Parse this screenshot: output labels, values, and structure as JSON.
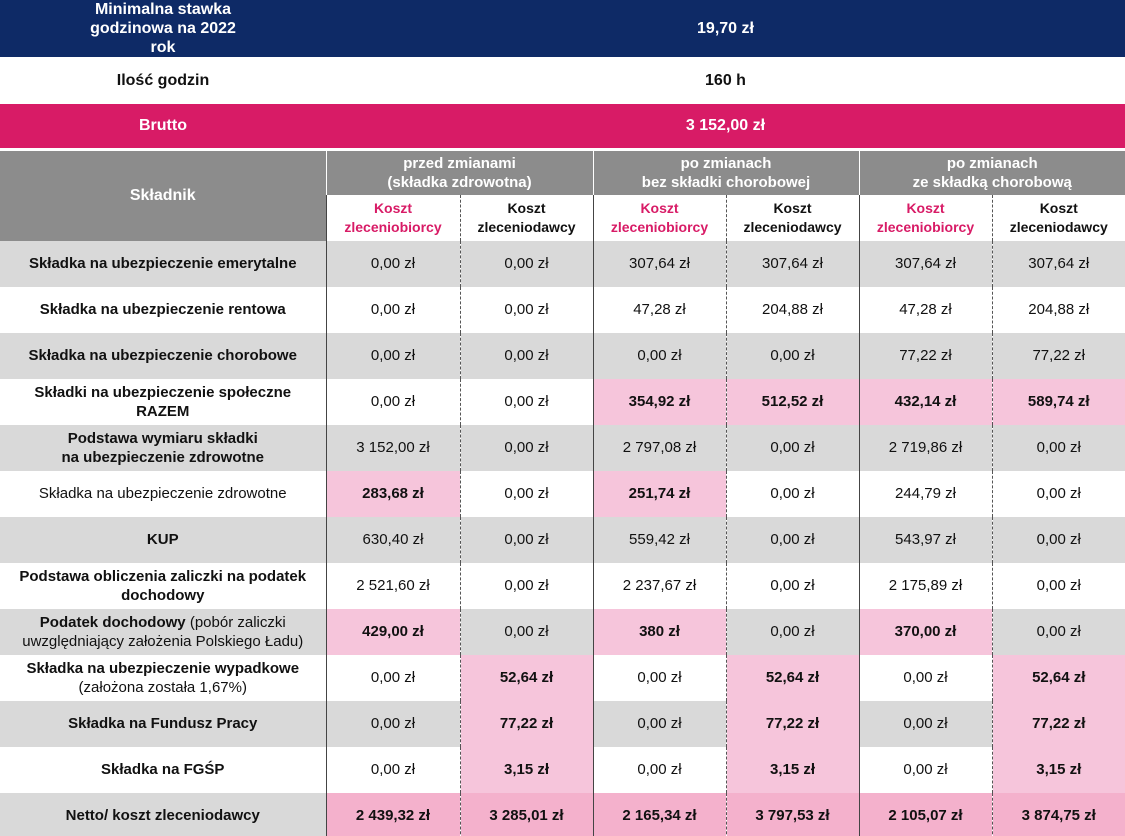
{
  "top": {
    "rate_label": "Minimalna stawka godzinowa na 2022 rok",
    "rate_value": "19,70 zł",
    "hours_label": "Ilość godzin",
    "hours_value": "160 h",
    "gross_label": "Brutto",
    "gross_value": "3 152,00 zł"
  },
  "header": {
    "component": "Składnik",
    "groups": [
      {
        "line1": "przed zmianami",
        "line2": "(składka zdrowotna)"
      },
      {
        "line1": "po zmianach",
        "line2": "bez składki chorobowej"
      },
      {
        "line1": "po zmianach",
        "line2": "ze składką chorobową"
      }
    ],
    "sub_contractor_line1": "Koszt",
    "sub_contractor_line2": "zleceniobiorcy",
    "sub_client_line1": "Koszt",
    "sub_client_line2": "zleceniodawcy"
  },
  "rows": [
    {
      "label1": "Składka na ubezpieczenie emerytalne",
      "label2": "",
      "values": [
        "0,00 zł",
        "0,00 zł",
        "307,64 zł",
        "307,64 zł",
        "307,64 zł",
        "307,64 zł"
      ]
    },
    {
      "label1": "Składka na ubezpieczenie rentowa",
      "label2": "",
      "values": [
        "0,00 zł",
        "0,00 zł",
        "47,28 zł",
        "204,88 zł",
        "47,28 zł",
        "204,88 zł"
      ]
    },
    {
      "label1": "Składka na ubezpieczenie chorobowe",
      "label2": "",
      "values": [
        "0,00 zł",
        "0,00 zł",
        "0,00 zł",
        "0,00 zł",
        "77,22 zł",
        "77,22 zł"
      ]
    },
    {
      "label1": "Składki na ubezpieczenie społeczne",
      "label2": "RAZEM",
      "values": [
        "0,00 zł",
        "0,00 zł",
        "354,92 zł",
        "512,52 zł",
        "432,14 zł",
        "589,74 zł"
      ]
    },
    {
      "label1": "Podstawa wymiaru składki",
      "label2": "na ubezpieczenie zdrowotne",
      "values": [
        "3 152,00 zł",
        "0,00 zł",
        "2 797,08 zł",
        "0,00 zł",
        "2 719,86 zł",
        "0,00 zł"
      ]
    },
    {
      "label1": "Składka na ubezpieczenie zdrowotne",
      "label2": "",
      "values": [
        "283,68 zł",
        "0,00 zł",
        "251,74 zł",
        "0,00 zł",
        "244,79 zł",
        "0,00 zł"
      ]
    },
    {
      "label1": "KUP",
      "label2": "",
      "values": [
        "630,40 zł",
        "0,00 zł",
        "559,42 zł",
        "0,00 zł",
        "543,97 zł",
        "0,00 zł"
      ]
    },
    {
      "label1": "Podstawa obliczenia zaliczki na podatek",
      "label2": "dochodowy",
      "values": [
        "2 521,60 zł",
        "0,00 zł",
        "2 237,67 zł",
        "0,00 zł",
        "2 175,89 zł",
        "0,00 zł"
      ]
    },
    {
      "label1": "Podatek dochodowy",
      "label1_extra": " (pobór zaliczki",
      "label2": "uwzględniający założenia Polskiego Ładu)",
      "values": [
        "429,00 zł",
        "0,00 zł",
        "380 zł",
        "0,00 zł",
        "370,00 zł",
        "0,00 zł"
      ]
    },
    {
      "label1": "Składka na ubezpieczenie wypadkowe",
      "label2": "(założona została 1,67%)",
      "values": [
        "0,00 zł",
        "52,64 zł",
        "0,00 zł",
        "52,64 zł",
        "0,00 zł",
        "52,64 zł"
      ]
    },
    {
      "label1": "Składka na Fundusz Pracy",
      "label2": "",
      "values": [
        "0,00 zł",
        "77,22 zł",
        "0,00 zł",
        "77,22 zł",
        "0,00 zł",
        "77,22 zł"
      ]
    },
    {
      "label1": "Składka na FGŚP",
      "label2": "",
      "values": [
        "0,00 zł",
        "3,15 zł",
        "0,00 zł",
        "3,15 zł",
        "0,00 zł",
        "3,15 zł"
      ]
    },
    {
      "label1": "Netto/ koszt zleceniodawcy",
      "label2": "",
      "values": [
        "2 439,32 zł",
        "3 285,01 zł",
        "2 165,34 zł",
        "3 797,53 zł",
        "2 105,07 zł",
        "3 874,75 zł"
      ]
    }
  ],
  "colors": {
    "navy": "#0e2a66",
    "magenta": "#d81b66",
    "header_grey": "#8c8c8c",
    "row_grey": "#d9d9d9",
    "highlight_pink": "#f6c5db"
  }
}
